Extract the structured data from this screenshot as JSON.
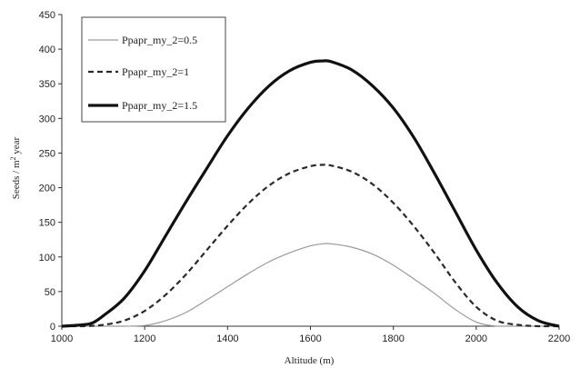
{
  "chart_data": {
    "type": "line",
    "title": "",
    "xlabel": "Altitude (m)",
    "ylabel_main": "Seeds / m",
    "ylabel_sup": "2",
    "ylabel_tail": " year",
    "xlim": [
      1000,
      2200
    ],
    "ylim": [
      0,
      450
    ],
    "xticks": [
      1000,
      1200,
      1400,
      1600,
      1800,
      2000,
      2200
    ],
    "yticks": [
      0,
      50,
      100,
      150,
      200,
      250,
      300,
      350,
      400,
      450
    ],
    "legend_position": "top-left",
    "grid": false,
    "series": [
      {
        "name": "Ppapr_my_2=0.5",
        "style": "thin-gray",
        "x": [
          1000,
          1150,
          1200,
          1250,
          1300,
          1350,
          1400,
          1450,
          1500,
          1550,
          1600,
          1630,
          1650,
          1700,
          1750,
          1800,
          1850,
          1900,
          1950,
          2000,
          2050,
          2100,
          2150,
          2200
        ],
        "y": [
          0,
          0,
          1,
          8,
          20,
          38,
          57,
          76,
          93,
          106,
          116,
          119,
          119,
          114,
          104,
          88,
          68,
          47,
          24,
          6,
          0,
          0,
          0,
          0
        ]
      },
      {
        "name": "Ppapr_my_2=1",
        "style": "dashed",
        "x": [
          1000,
          1050,
          1100,
          1150,
          1200,
          1250,
          1300,
          1350,
          1400,
          1450,
          1500,
          1550,
          1600,
          1630,
          1650,
          1700,
          1750,
          1800,
          1850,
          1900,
          1950,
          2000,
          2050,
          2100,
          2150,
          2200
        ],
        "y": [
          0,
          0,
          2,
          8,
          22,
          45,
          75,
          110,
          145,
          177,
          203,
          221,
          231,
          233,
          232,
          223,
          205,
          178,
          144,
          105,
          63,
          28,
          8,
          2,
          0,
          0
        ]
      },
      {
        "name": "Ppapr_my_2=1.5",
        "style": "thick-black",
        "x": [
          1000,
          1050,
          1075,
          1100,
          1150,
          1200,
          1250,
          1300,
          1350,
          1400,
          1450,
          1500,
          1550,
          1600,
          1630,
          1650,
          1700,
          1750,
          1800,
          1850,
          1900,
          1950,
          2000,
          2050,
          2100,
          2150,
          2200
        ],
        "y": [
          0,
          2,
          5,
          15,
          40,
          80,
          130,
          180,
          228,
          275,
          315,
          347,
          369,
          381,
          383,
          382,
          370,
          347,
          315,
          272,
          220,
          165,
          110,
          63,
          28,
          8,
          0
        ]
      }
    ]
  },
  "colors": {
    "thin-gray": "#9a9a9a",
    "dashed": "#2a2a2a",
    "thick-black": "#111111",
    "axis": "#333333"
  }
}
